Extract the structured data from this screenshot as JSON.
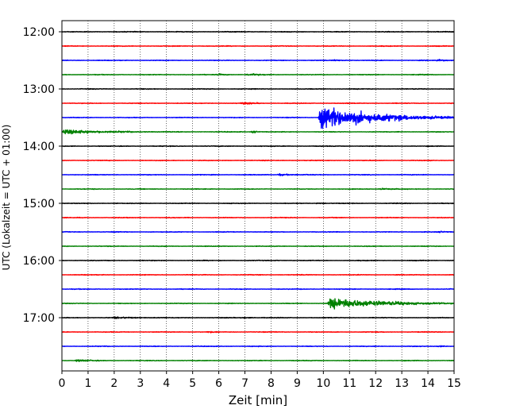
{
  "chart_data": {
    "type": "line",
    "title": "",
    "xlabel": "Zeit  [min]",
    "ylabel": "UTC (Lokalzeit = UTC + 01:00)",
    "xlim": [
      0,
      15
    ],
    "x_ticks": [
      0,
      1,
      2,
      3,
      4,
      5,
      6,
      7,
      8,
      9,
      10,
      11,
      12,
      13,
      14,
      15
    ],
    "y_tick_labels": [
      "12:00",
      "13:00",
      "14:00",
      "15:00",
      "16:00",
      "17:00"
    ],
    "vertical_grid": "dotted at each minute",
    "trace_interval_min": 15,
    "trace_colors": [
      "#000000",
      "#ff0000",
      "#0000ff",
      "#008000"
    ],
    "traces": [
      {
        "start": "12:00",
        "color": "#000000",
        "events": []
      },
      {
        "start": "12:15",
        "color": "#ff0000",
        "events": []
      },
      {
        "start": "12:30",
        "color": "#0000ff",
        "events": [
          {
            "t": 10.3,
            "amp": 0.25,
            "dur": 1.0
          },
          {
            "t": 14.3,
            "amp": 0.45,
            "dur": 0.7
          }
        ]
      },
      {
        "start": "12:45",
        "color": "#008000",
        "events": [
          {
            "t": 5.9,
            "amp": 0.3,
            "dur": 0.8
          },
          {
            "t": 7.0,
            "amp": 0.35,
            "dur": 1.3
          }
        ]
      },
      {
        "start": "13:00",
        "color": "#000000",
        "events": []
      },
      {
        "start": "13:15",
        "color": "#ff0000",
        "events": [
          {
            "t": 6.8,
            "amp": 0.4,
            "dur": 1.0
          }
        ]
      },
      {
        "start": "13:30",
        "color": "#0000ff",
        "events": [
          {
            "t": 9.8,
            "amp": 4.0,
            "dur": 5.2
          }
        ]
      },
      {
        "start": "13:45",
        "color": "#008000",
        "events": [
          {
            "t": 0.0,
            "amp": 0.8,
            "dur": 3.5
          },
          {
            "t": 7.2,
            "amp": 0.6,
            "dur": 0.5
          }
        ]
      },
      {
        "start": "14:00",
        "color": "#000000",
        "events": []
      },
      {
        "start": "14:15",
        "color": "#ff0000",
        "events": []
      },
      {
        "start": "14:30",
        "color": "#0000ff",
        "events": [
          {
            "t": 8.2,
            "amp": 0.45,
            "dur": 1.0
          }
        ]
      },
      {
        "start": "14:45",
        "color": "#008000",
        "events": [
          {
            "t": 12.1,
            "amp": 0.35,
            "dur": 0.9
          }
        ]
      },
      {
        "start": "15:00",
        "color": "#000000",
        "events": [
          {
            "t": 9.7,
            "amp": 0.3,
            "dur": 0.5
          }
        ]
      },
      {
        "start": "15:15",
        "color": "#ff0000",
        "events": []
      },
      {
        "start": "15:30",
        "color": "#0000ff",
        "events": [
          {
            "t": 14.4,
            "amp": 0.3,
            "dur": 0.6
          }
        ]
      },
      {
        "start": "15:45",
        "color": "#008000",
        "events": []
      },
      {
        "start": "16:00",
        "color": "#000000",
        "events": [
          {
            "t": 8.1,
            "amp": 0.2,
            "dur": 0.4
          }
        ]
      },
      {
        "start": "16:15",
        "color": "#ff0000",
        "events": []
      },
      {
        "start": "16:30",
        "color": "#0000ff",
        "events": []
      },
      {
        "start": "16:45",
        "color": "#008000",
        "events": [
          {
            "t": 10.15,
            "amp": 2.0,
            "dur": 4.8
          }
        ]
      },
      {
        "start": "17:00",
        "color": "#000000",
        "events": [
          {
            "t": 1.9,
            "amp": 0.25,
            "dur": 2.0
          },
          {
            "t": 6.8,
            "amp": 0.3,
            "dur": 0.8
          }
        ]
      },
      {
        "start": "17:15",
        "color": "#ff0000",
        "events": [
          {
            "t": 5.5,
            "amp": 0.3,
            "dur": 0.6
          }
        ]
      },
      {
        "start": "17:30",
        "color": "#0000ff",
        "events": [
          {
            "t": 14.3,
            "amp": 0.3,
            "dur": 0.7
          }
        ]
      },
      {
        "start": "17:45",
        "color": "#008000",
        "events": [
          {
            "t": 0.5,
            "amp": 0.45,
            "dur": 1.0
          }
        ]
      }
    ]
  }
}
